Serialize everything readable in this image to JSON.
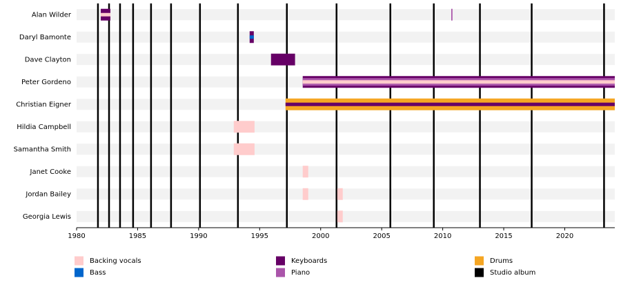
{
  "chart_data": {
    "type": "timeline",
    "xlim": [
      1980,
      2024.1
    ],
    "xticks": [
      1980,
      1985,
      1990,
      1995,
      2000,
      2005,
      2010,
      2015,
      2020
    ],
    "roles": [
      {
        "name": "Backing vocals",
        "color": "#ffcccc"
      },
      {
        "name": "Bass",
        "color": "#0066cc"
      },
      {
        "name": "Keyboards",
        "color": "#660066"
      },
      {
        "name": "Piano",
        "color": "#aa55aa"
      },
      {
        "name": "Drums",
        "color": "#f5a623"
      }
    ],
    "studio_albums": {
      "name": "Studio album",
      "color": "#000000",
      "values": [
        1981.75,
        1982.66,
        1983.56,
        1984.63,
        1986.1,
        1987.74,
        1990.11,
        1993.22,
        1997.23,
        2001.3,
        2005.71,
        2009.27,
        2013.05,
        2017.29,
        2023.22
      ]
    },
    "rows": [
      {
        "name": "Alan Wilder",
        "spans": [
          {
            "start": 1981.98,
            "end": 1982.77,
            "roles": [
              "Keyboards",
              "Backing vocals"
            ]
          },
          {
            "start": 2010.7,
            "end": 2010.8,
            "roles": [
              "Piano"
            ]
          }
        ]
      },
      {
        "name": "Daryl Bamonte",
        "spans": [
          {
            "start": 1994.18,
            "end": 1994.52,
            "roles": [
              "Keyboards",
              "Bass"
            ]
          }
        ]
      },
      {
        "name": "Dave Clayton",
        "spans": [
          {
            "start": 1995.93,
            "end": 1997.9,
            "roles": [
              "Keyboards"
            ]
          }
        ]
      },
      {
        "name": "Peter Gordeno",
        "spans": [
          {
            "start": 1998.53,
            "end": 2024.1,
            "roles": [
              "Keyboards",
              "Piano",
              "Backing vocals"
            ]
          }
        ]
      },
      {
        "name": "Christian Eigner",
        "spans": [
          {
            "start": 1997.12,
            "end": 2024.1,
            "roles": [
              "Drums",
              "Keyboards"
            ]
          }
        ]
      },
      {
        "name": "Hildia Campbell",
        "spans": [
          {
            "start": 1992.88,
            "end": 1994.58,
            "roles": [
              "Backing vocals"
            ]
          }
        ]
      },
      {
        "name": "Samantha Smith",
        "spans": [
          {
            "start": 1992.88,
            "end": 1994.58,
            "roles": [
              "Backing vocals"
            ]
          }
        ]
      },
      {
        "name": "Janet Cooke",
        "spans": [
          {
            "start": 1998.53,
            "end": 1998.98,
            "roles": [
              "Backing vocals"
            ]
          }
        ]
      },
      {
        "name": "Jordan Bailey",
        "spans": [
          {
            "start": 1998.53,
            "end": 1998.98,
            "roles": [
              "Backing vocals"
            ]
          },
          {
            "start": 2001.36,
            "end": 2001.81,
            "roles": [
              "Backing vocals"
            ]
          }
        ]
      },
      {
        "name": "Georgia Lewis",
        "spans": [
          {
            "start": 2001.36,
            "end": 2001.81,
            "roles": [
              "Backing vocals"
            ]
          }
        ]
      }
    ]
  }
}
